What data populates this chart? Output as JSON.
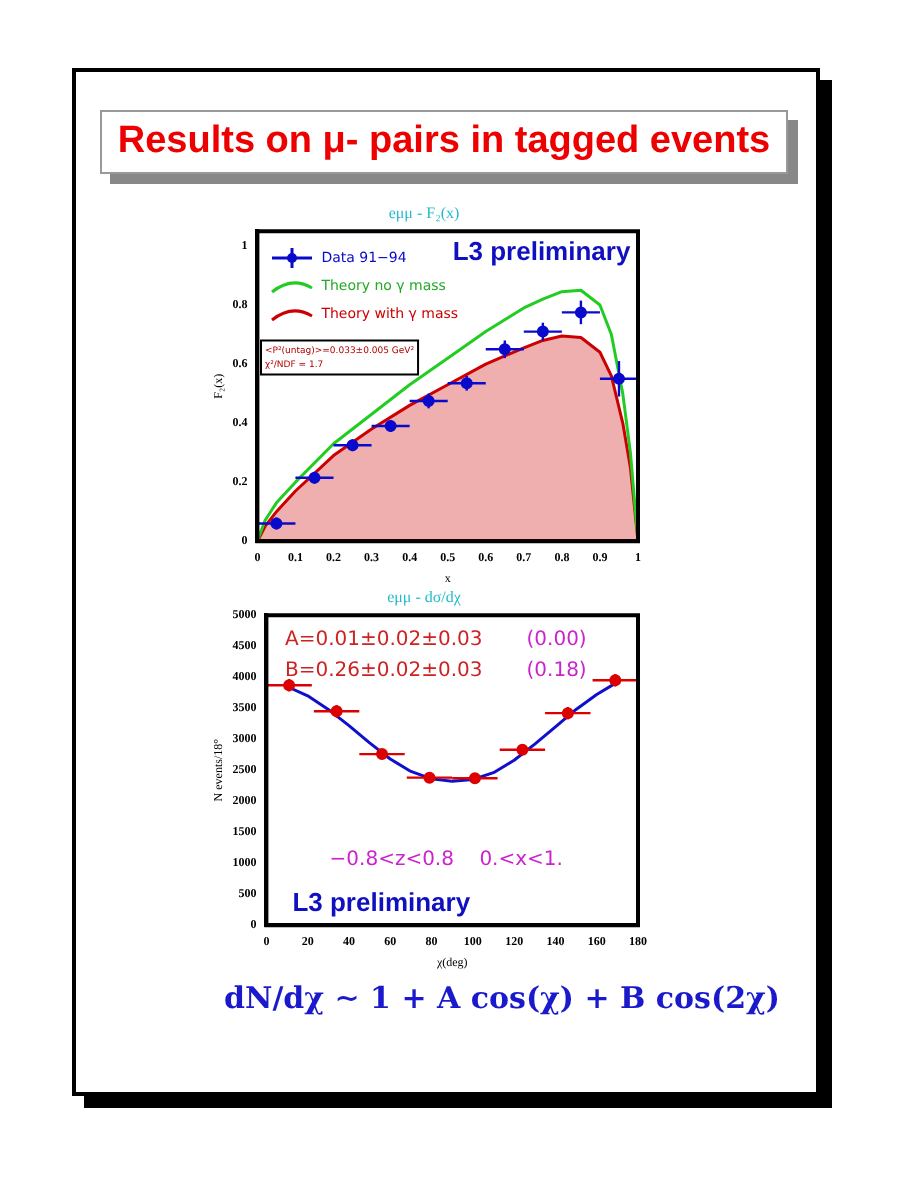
{
  "chart_data": [
    {
      "type": "scatter",
      "title": "eμμ - F₂(x)",
      "xlabel": "x",
      "ylabel": "F₂(x)",
      "xlim": [
        0,
        1
      ],
      "xticks": [
        0,
        0.1,
        0.2,
        0.3,
        0.4,
        0.5,
        0.6,
        0.7,
        0.8,
        0.9,
        1
      ],
      "ylim": [
        0,
        1.05
      ],
      "yticks": [
        0,
        0.2,
        0.4,
        0.6,
        0.8,
        1
      ],
      "legend": "top left",
      "annotations": [
        "Results on μ- pairs in tagged events",
        "L3 preliminary",
        "<P²(untag)>=0.033±0.005 GeV²",
        "χ²/NDF = 1.7"
      ],
      "series": [
        {
          "name": "Data 91−94",
          "type": "scatter",
          "marker": "circle",
          "color": "#0a0acc",
          "x": [
            0.05,
            0.15,
            0.25,
            0.35,
            0.45,
            0.55,
            0.65,
            0.75,
            0.85,
            0.95
          ],
          "values": [
            0.06,
            0.215,
            0.325,
            0.39,
            0.475,
            0.535,
            0.65,
            0.71,
            0.775,
            0.55
          ],
          "errors": [
            0.02,
            0.02,
            0.02,
            0.02,
            0.025,
            0.025,
            0.03,
            0.03,
            0.04,
            0.06
          ],
          "xerrors": [
            0.05,
            0.05,
            0.05,
            0.05,
            0.05,
            0.05,
            0.05,
            0.05,
            0.05,
            0.05
          ]
        },
        {
          "name": "Theory no γ mass",
          "type": "line",
          "color": "#22cc22",
          "x": [
            0,
            0.02,
            0.05,
            0.1,
            0.2,
            0.3,
            0.4,
            0.5,
            0.6,
            0.7,
            0.75,
            0.8,
            0.85,
            0.9,
            0.93,
            0.96,
            0.98,
            1
          ],
          "values": [
            0,
            0.07,
            0.13,
            0.2,
            0.33,
            0.43,
            0.53,
            0.62,
            0.71,
            0.79,
            0.82,
            0.845,
            0.85,
            0.8,
            0.7,
            0.5,
            0.3,
            0
          ]
        },
        {
          "name": "Theory with γ mass",
          "type": "area",
          "color": "#cc0000",
          "x": [
            0,
            0.02,
            0.05,
            0.1,
            0.2,
            0.3,
            0.4,
            0.5,
            0.6,
            0.7,
            0.75,
            0.8,
            0.85,
            0.9,
            0.93,
            0.96,
            0.98,
            1
          ],
          "values": [
            0,
            0.05,
            0.1,
            0.17,
            0.29,
            0.38,
            0.46,
            0.53,
            0.6,
            0.655,
            0.68,
            0.695,
            0.69,
            0.64,
            0.56,
            0.4,
            0.25,
            0
          ]
        }
      ]
    },
    {
      "type": "scatter",
      "title": "eμμ - dσ/dχ",
      "xlabel": "χ(deg)",
      "ylabel": "N events/18°",
      "xlim": [
        0,
        180
      ],
      "xticks": [
        0,
        20,
        40,
        60,
        80,
        100,
        120,
        140,
        160,
        180
      ],
      "ylim": [
        0,
        5000
      ],
      "yticks": [
        0,
        500,
        1000,
        1500,
        2000,
        2500,
        3000,
        3500,
        4000,
        4500,
        5000
      ],
      "annotations": [
        "A=0.01±0.02±0.03",
        "(0.00)",
        "B=0.26±0.02±0.03",
        "(0.18)",
        "−0.8<z<0.8    0.<x<1.",
        "L3 preliminary",
        "dN/dχ ∼ 1 + A cos(χ) + B cos(2χ)"
      ],
      "series": [
        {
          "type": "scatter",
          "marker": "circle",
          "color": "#dd0000",
          "x": [
            11,
            34,
            56,
            79,
            101,
            124,
            146,
            169
          ],
          "values": [
            3870,
            3450,
            2760,
            2380,
            2370,
            2830,
            3420,
            3950
          ],
          "errors": [
            100,
            100,
            80,
            80,
            80,
            80,
            100,
            100
          ],
          "xerrors": [
            11,
            11,
            11,
            11,
            11,
            11,
            11,
            11
          ]
        },
        {
          "type": "line",
          "color": "#1010cc",
          "x": [
            10,
            20,
            30,
            40,
            50,
            60,
            70,
            80,
            90,
            100,
            110,
            120,
            130,
            140,
            150,
            160,
            170
          ],
          "values": [
            3850,
            3700,
            3480,
            3220,
            2940,
            2680,
            2480,
            2360,
            2320,
            2350,
            2460,
            2660,
            2920,
            3200,
            3480,
            3720,
            3920
          ]
        }
      ]
    }
  ]
}
